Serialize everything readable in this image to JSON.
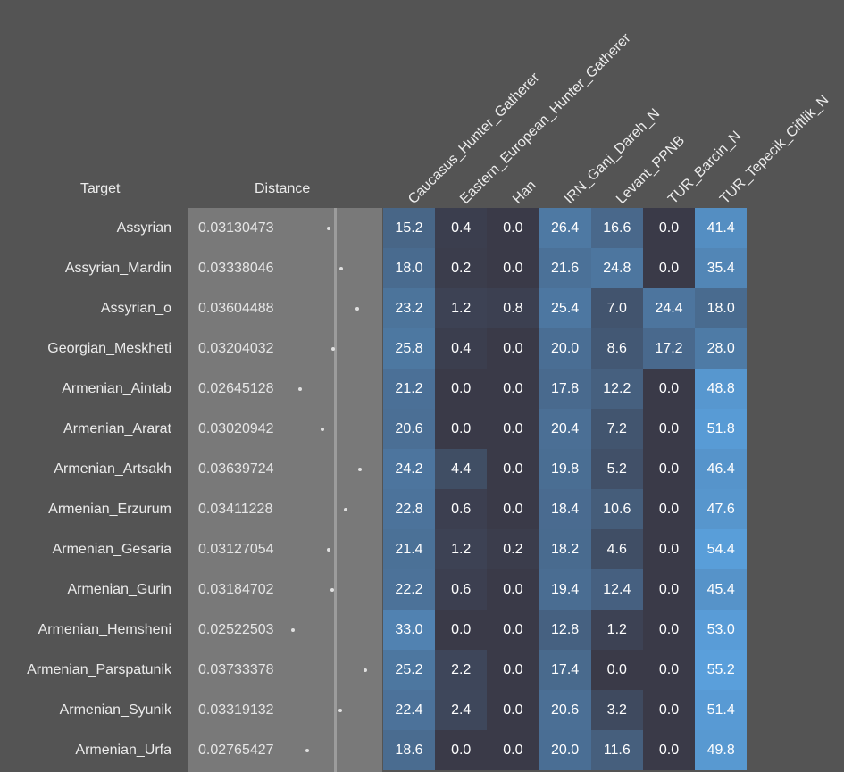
{
  "headers": {
    "target": "Target",
    "distance": "Distance"
  },
  "columns": [
    "Caucasus_Hunter_Gatherer",
    "Eastern_European_Hunter_Gatherer",
    "Han",
    "IRN_Ganj_Dareh_N",
    "Levant_PPNB",
    "TUR_Barcin_N",
    "TUR_Tepecik_Ciftlik_N"
  ],
  "rows": [
    {
      "target": "Assyrian",
      "distance": "0.03130473",
      "values": [
        "15.2",
        "0.4",
        "0.0",
        "26.4",
        "16.6",
        "0.0",
        "41.4"
      ]
    },
    {
      "target": "Assyrian_Mardin",
      "distance": "0.03338046",
      "values": [
        "18.0",
        "0.2",
        "0.0",
        "21.6",
        "24.8",
        "0.0",
        "35.4"
      ]
    },
    {
      "target": "Assyrian_o",
      "distance": "0.03604488",
      "values": [
        "23.2",
        "1.2",
        "0.8",
        "25.4",
        "7.0",
        "24.4",
        "18.0"
      ]
    },
    {
      "target": "Georgian_Meskheti",
      "distance": "0.03204032",
      "values": [
        "25.8",
        "0.4",
        "0.0",
        "20.0",
        "8.6",
        "17.2",
        "28.0"
      ]
    },
    {
      "target": "Armenian_Aintab",
      "distance": "0.02645128",
      "values": [
        "21.2",
        "0.0",
        "0.0",
        "17.8",
        "12.2",
        "0.0",
        "48.8"
      ]
    },
    {
      "target": "Armenian_Ararat",
      "distance": "0.03020942",
      "values": [
        "20.6",
        "0.0",
        "0.0",
        "20.4",
        "7.2",
        "0.0",
        "51.8"
      ]
    },
    {
      "target": "Armenian_Artsakh",
      "distance": "0.03639724",
      "values": [
        "24.2",
        "4.4",
        "0.0",
        "19.8",
        "5.2",
        "0.0",
        "46.4"
      ]
    },
    {
      "target": "Armenian_Erzurum",
      "distance": "0.03411228",
      "values": [
        "22.8",
        "0.6",
        "0.0",
        "18.4",
        "10.6",
        "0.0",
        "47.6"
      ]
    },
    {
      "target": "Armenian_Gesaria",
      "distance": "0.03127054",
      "values": [
        "21.4",
        "1.2",
        "0.2",
        "18.2",
        "4.6",
        "0.0",
        "54.4"
      ]
    },
    {
      "target": "Armenian_Gurin",
      "distance": "0.03184702",
      "values": [
        "22.2",
        "0.6",
        "0.0",
        "19.4",
        "12.4",
        "0.0",
        "45.4"
      ]
    },
    {
      "target": "Armenian_Hemsheni",
      "distance": "0.02522503",
      "values": [
        "33.0",
        "0.0",
        "0.0",
        "12.8",
        "1.2",
        "0.0",
        "53.0"
      ]
    },
    {
      "target": "Armenian_Parspatunik",
      "distance": "0.03733378",
      "values": [
        "25.2",
        "2.2",
        "0.0",
        "17.4",
        "0.0",
        "0.0",
        "55.2"
      ]
    },
    {
      "target": "Armenian_Syunik",
      "distance": "0.03319132",
      "values": [
        "22.4",
        "2.4",
        "0.0",
        "20.6",
        "3.2",
        "0.0",
        "51.4"
      ]
    },
    {
      "target": "Armenian_Urfa",
      "distance": "0.02765427",
      "values": [
        "18.6",
        "0.0",
        "0.0",
        "20.0",
        "11.6",
        "0.0",
        "49.8"
      ]
    }
  ],
  "colors": {
    "background": "#545454",
    "distance_band": "#797979",
    "cell_low": "#3a3a48",
    "cell_high": "#5aa0dc"
  }
}
